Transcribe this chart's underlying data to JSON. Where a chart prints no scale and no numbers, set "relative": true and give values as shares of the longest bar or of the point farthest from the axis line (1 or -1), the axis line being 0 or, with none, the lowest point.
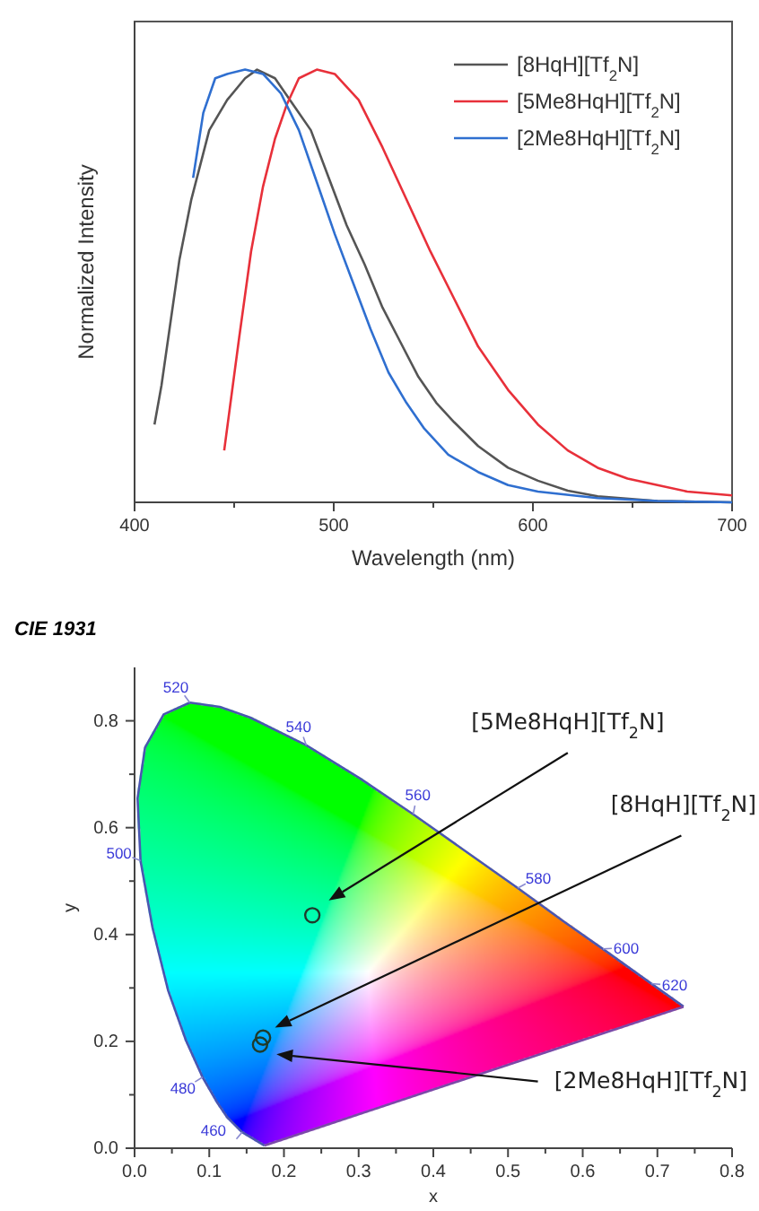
{
  "chart_data": [
    {
      "type": "line",
      "relative": true,
      "xlabel": "Wavelength (nm)",
      "ylabel": "Normalized Intensity",
      "xlim": [
        400,
        700
      ],
      "xticks": [
        400,
        {
          "value": 450,
          "label": null
        },
        500,
        {
          "value": 550,
          "label": null
        },
        600,
        {
          "value": 650,
          "label": null
        },
        700
      ],
      "tick_labels": "x",
      "legend": "top right",
      "series": [
        {
          "name": "[8HqH][Tf$_{2}$N]",
          "color": "#555555",
          "x": [
            410,
            413.5,
            422.5,
            428.5,
            437.5,
            446.5,
            455.5,
            461.5,
            470.5,
            479.5,
            488.5,
            497.5,
            506.5,
            515.5,
            524.5,
            533.5,
            542.5,
            551.5,
            560.5,
            572.5,
            587.5,
            602.5,
            617.5,
            632.5,
            662.5,
            700
          ],
          "values": [
            0.18,
            0.27,
            0.56,
            0.7,
            0.86,
            0.93,
            0.98,
            1.0,
            0.98,
            0.92,
            0.86,
            0.75,
            0.64,
            0.55,
            0.45,
            0.37,
            0.29,
            0.23,
            0.185,
            0.13,
            0.08,
            0.05,
            0.027,
            0.014,
            0.003,
            0.0
          ]
        },
        {
          "name": "[5Me8HqH][Tf$_{2}$N]",
          "color": "#e8303a",
          "x": [
            445,
            452.5,
            458.5,
            464.5,
            470.5,
            476.5,
            482.5,
            491.5,
            500.5,
            512.5,
            524.5,
            536.5,
            548.5,
            560.5,
            572.5,
            587.5,
            602.5,
            617.5,
            632.5,
            647.5,
            662.5,
            677.5,
            700
          ],
          "values": [
            0.12,
            0.38,
            0.58,
            0.73,
            0.84,
            0.92,
            0.98,
            1.0,
            0.99,
            0.93,
            0.82,
            0.7,
            0.58,
            0.47,
            0.36,
            0.26,
            0.18,
            0.12,
            0.08,
            0.055,
            0.04,
            0.025,
            0.016
          ]
        },
        {
          "name": "[2Me8HqH][Tf$_{2}$N]",
          "color": "#2f6fd0",
          "x": [
            429.4,
            434.5,
            440.5,
            446.5,
            455.5,
            464.5,
            473.5,
            482.5,
            491.5,
            500.5,
            509.5,
            518.5,
            527.5,
            536.5,
            545.5,
            557.5,
            572.5,
            587.5,
            602.5,
            632.5,
            662.5,
            700
          ],
          "values": [
            0.75,
            0.9,
            0.98,
            0.99,
            1.0,
            0.99,
            0.945,
            0.86,
            0.74,
            0.62,
            0.51,
            0.4,
            0.3,
            0.23,
            0.17,
            0.11,
            0.07,
            0.04,
            0.025,
            0.01,
            0.003,
            0.0
          ]
        }
      ]
    },
    {
      "type": "scatter",
      "title": "CIE 1931",
      "xlabel": "x",
      "ylabel": "y",
      "xlim": [
        0,
        0.8
      ],
      "ylim": [
        0,
        0.9
      ],
      "legend": false,
      "xticks": [
        {
          "value": 0,
          "label": "0.0"
        },
        {
          "value": 0.05,
          "label": null
        },
        0.1,
        {
          "value": 0.15,
          "label": null
        },
        0.2,
        {
          "value": 0.25,
          "label": null
        },
        0.3,
        {
          "value": 0.35,
          "label": null
        },
        0.4,
        {
          "value": 0.45,
          "label": null
        },
        0.5,
        {
          "value": 0.55,
          "label": null
        },
        0.6,
        {
          "value": 0.65,
          "label": null
        },
        0.7,
        {
          "value": 0.75,
          "label": null
        },
        0.8
      ],
      "yticks": [
        {
          "value": 0,
          "label": "0.0"
        },
        {
          "value": 0.1,
          "label": null
        },
        0.2,
        {
          "value": 0.3,
          "label": null
        },
        0.4,
        {
          "value": 0.5,
          "label": null
        },
        0.6,
        {
          "value": 0.7,
          "label": null
        },
        0.8
      ],
      "annotations": [
        {
          "text": "520",
          "x": 0.074,
          "y": 0.834
        },
        {
          "text": "540",
          "x": 0.23,
          "y": 0.754
        },
        {
          "text": "560",
          "x": 0.373,
          "y": 0.625
        },
        {
          "text": "580",
          "x": 0.513,
          "y": 0.487
        },
        {
          "text": "600",
          "x": 0.627,
          "y": 0.373
        },
        {
          "text": "620",
          "x": 0.692,
          "y": 0.308
        },
        {
          "text": "500",
          "x": 0.008,
          "y": 0.538
        },
        {
          "text": "480",
          "x": 0.091,
          "y": 0.133
        },
        {
          "text": "460",
          "x": 0.144,
          "y": 0.03
        }
      ],
      "series": [
        {
          "type": "line",
          "color": "#4a56b0",
          "x": [
            0.174,
            0.144,
            0.124,
            0.11,
            0.091,
            0.069,
            0.045,
            0.024,
            0.008,
            0.004,
            0.014,
            0.039,
            0.074,
            0.114,
            0.155,
            0.23,
            0.302,
            0.373,
            0.444,
            0.513,
            0.575,
            0.627,
            0.692,
            0.719,
            0.735
          ],
          "values": [
            0.005,
            0.03,
            0.058,
            0.087,
            0.133,
            0.201,
            0.295,
            0.413,
            0.538,
            0.655,
            0.75,
            0.812,
            0.834,
            0.826,
            0.806,
            0.754,
            0.692,
            0.625,
            0.555,
            0.487,
            0.424,
            0.373,
            0.308,
            0.281,
            0.265
          ]
        },
        {
          "type": "line",
          "color": "#7a4aa8",
          "x": [
            0.174,
            0.735
          ],
          "values": [
            0.005,
            0.265
          ]
        },
        {
          "name": "[8HqH][Tf$_{2}$N]",
          "color": "#1f3b2c",
          "marker": "circle",
          "x": [
            0.172
          ],
          "values": [
            0.207
          ]
        },
        {
          "name": "[5Me8HqH][Tf$_{2}$N]",
          "color": "#1f3b2c",
          "marker": "circle",
          "x": [
            0.238
          ],
          "values": [
            0.436
          ]
        },
        {
          "name": "[2Me8HqH][Tf$_{2}$N]",
          "color": "#1f3b2c",
          "marker": "circle",
          "x": [
            0.168
          ],
          "values": [
            0.194
          ]
        }
      ]
    }
  ]
}
